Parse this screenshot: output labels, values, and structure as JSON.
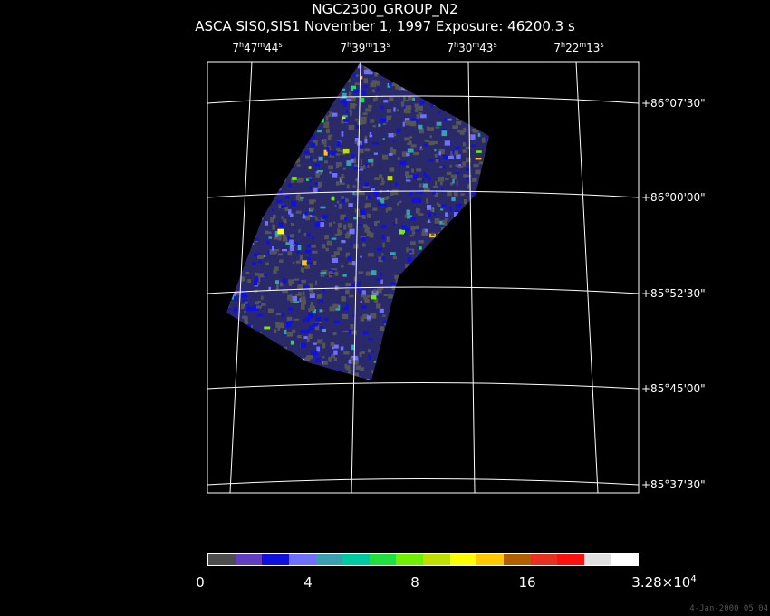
{
  "title": {
    "line1": "NGC2300_GROUP_N2",
    "line2": "ASCA SIS0,SIS1 November 1, 1997 Exposure: 46200.3 s"
  },
  "ra_labels": [
    {
      "h": "7",
      "m": "47",
      "s": "44"
    },
    {
      "h": "7",
      "m": "39",
      "s": "13"
    },
    {
      "h": "7",
      "m": "30",
      "s": "43"
    },
    {
      "h": "7",
      "m": "22",
      "s": "13"
    }
  ],
  "dec_labels": [
    "+86°07'30\"",
    "+86°00'00\"",
    "+85°52'30\"",
    "+85°45'00\"",
    "+85°37'30\""
  ],
  "colorbar": {
    "colors": [
      "#4d4d4d",
      "#6040c0",
      "#1010e0",
      "#7070ff",
      "#3aa0b0",
      "#00c8a0",
      "#20e040",
      "#70f000",
      "#c0e000",
      "#ffff00",
      "#ffc800",
      "#b06000",
      "#e83020",
      "#ff1010",
      "#e0e0e0",
      "#ffffff"
    ],
    "tick_labels": [
      "0",
      "4",
      "8",
      "16",
      "3.28×10"
    ],
    "max_exponent": "4"
  },
  "image_colors": {
    "background": "#000000",
    "grid": "#ffffff",
    "field_base": "#2a2a6a",
    "field_texture": "#555555"
  },
  "timestamp": "4-Jan-2000 05:04"
}
